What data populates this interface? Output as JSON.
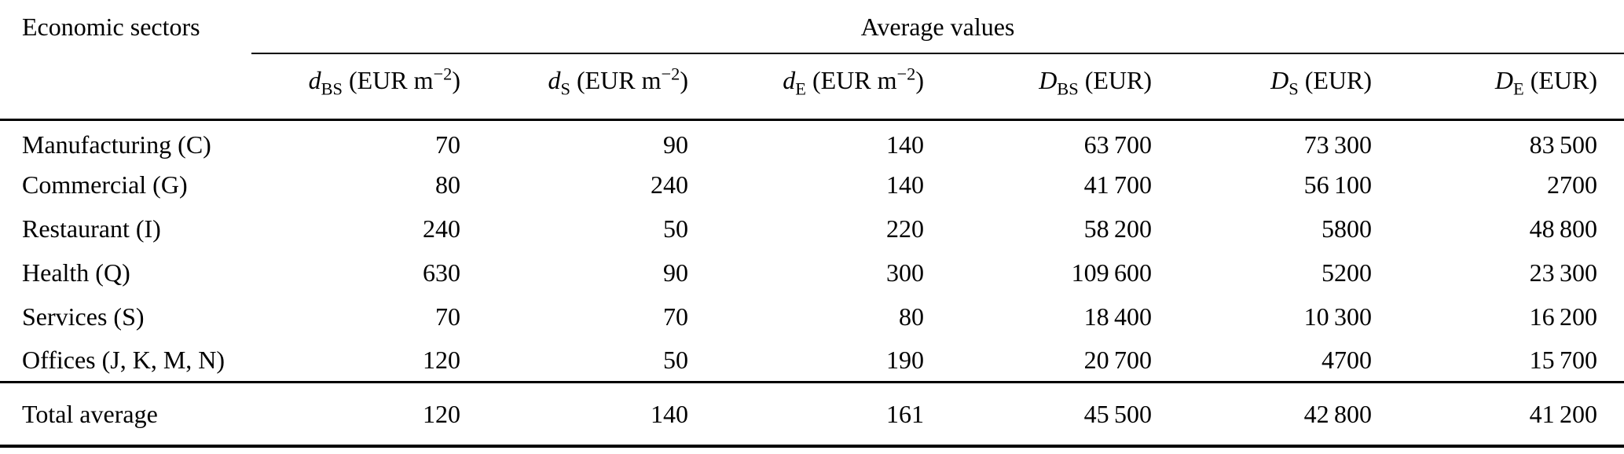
{
  "table": {
    "corner_header": "Economic sectors",
    "group_header": "Average values",
    "columns": [
      {
        "var": "d",
        "sub": "BS",
        "unit": " (EUR m",
        "sup": "−2",
        "tail": ")"
      },
      {
        "var": "d",
        "sub": "S",
        "unit": " (EUR m",
        "sup": "−2",
        "tail": ")"
      },
      {
        "var": "d",
        "sub": "E",
        "unit": " (EUR m",
        "sup": "−2",
        "tail": ")"
      },
      {
        "var": "D",
        "sub": "BS",
        "unit": " (EUR)",
        "sup": "",
        "tail": ""
      },
      {
        "var": "D",
        "sub": "S",
        "unit": " (EUR)",
        "sup": "",
        "tail": ""
      },
      {
        "var": "D",
        "sub": "E",
        "unit": " (EUR)",
        "sup": "",
        "tail": ""
      }
    ],
    "rows": [
      {
        "sector": "Manufacturing (C)",
        "values": [
          "70",
          "90",
          "140",
          "63 700",
          "73 300",
          "83 500"
        ]
      },
      {
        "sector": "Commercial (G)",
        "values": [
          "80",
          "240",
          "140",
          "41 700",
          "56 100",
          "2700"
        ]
      },
      {
        "sector": "Restaurant (I)",
        "values": [
          "240",
          "50",
          "220",
          "58 200",
          "5800",
          "48 800"
        ]
      },
      {
        "sector": "Health (Q)",
        "values": [
          "630",
          "90",
          "300",
          "109 600",
          "5200",
          "23 300"
        ]
      },
      {
        "sector": "Services (S)",
        "values": [
          "70",
          "70",
          "80",
          "18 400",
          "10 300",
          "16 200"
        ]
      },
      {
        "sector": "Offices (J, K, M, N)",
        "values": [
          "120",
          "50",
          "190",
          "20 700",
          "4700",
          "15 700"
        ]
      }
    ],
    "total": {
      "sector": "Total average",
      "values": [
        "120",
        "140",
        "161",
        "45 500",
        "42 800",
        "41 200"
      ]
    }
  },
  "colors": {
    "text": "#000000",
    "rule": "#000000",
    "background": "#ffffff"
  }
}
